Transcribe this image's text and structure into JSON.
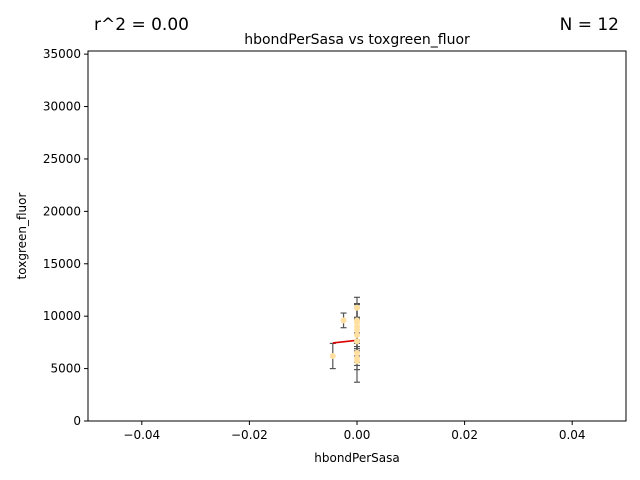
{
  "chart_data": {
    "type": "scatter",
    "title": "hbondPerSasa vs toxgreen_fluor",
    "xlabel": "hbondPerSasa",
    "ylabel": "toxgreen_fluor",
    "xlim": [
      -0.05,
      0.05
    ],
    "ylim": [
      0,
      35300
    ],
    "xticks": [
      -0.04,
      -0.02,
      0.0,
      0.02,
      0.04
    ],
    "xtick_labels": [
      "−0.04",
      "−0.02",
      "0.00",
      "0.02",
      "0.04"
    ],
    "yticks": [
      0,
      5000,
      10000,
      15000,
      20000,
      25000,
      30000,
      35000
    ],
    "ytick_labels": [
      "0",
      "5000",
      "10000",
      "15000",
      "20000",
      "25000",
      "30000",
      "35000"
    ],
    "r_squared_label": "r^2 = 0.00",
    "n_label": "N = 12",
    "points": [
      {
        "x": -0.0045,
        "y": 6200,
        "err": 1200
      },
      {
        "x": -0.0025,
        "y": 9600,
        "err": 700
      },
      {
        "x": 0.0,
        "y": 5700,
        "err": 2000
      },
      {
        "x": 0.0,
        "y": 6000,
        "err": 1100
      },
      {
        "x": 0.0,
        "y": 6500,
        "err": 900
      },
      {
        "x": 0.0,
        "y": 7600,
        "err": 2300
      },
      {
        "x": 0.0,
        "y": 8200,
        "err": 1500
      },
      {
        "x": 0.0,
        "y": 8700,
        "err": 2500
      },
      {
        "x": 0.0,
        "y": 9000,
        "err": 2100
      },
      {
        "x": 0.0,
        "y": 9400,
        "err": 1800
      },
      {
        "x": 0.0,
        "y": 9600,
        "err": 1200
      },
      {
        "x": 0.0,
        "y": 10800,
        "err": 1000
      }
    ],
    "fit_line": {
      "x": [
        -0.0045,
        0.0
      ],
      "y": [
        7450,
        7700
      ]
    },
    "colors": {
      "point": "#ffe0a0",
      "errorbar": "#555555",
      "fit": "#dd0000"
    }
  }
}
